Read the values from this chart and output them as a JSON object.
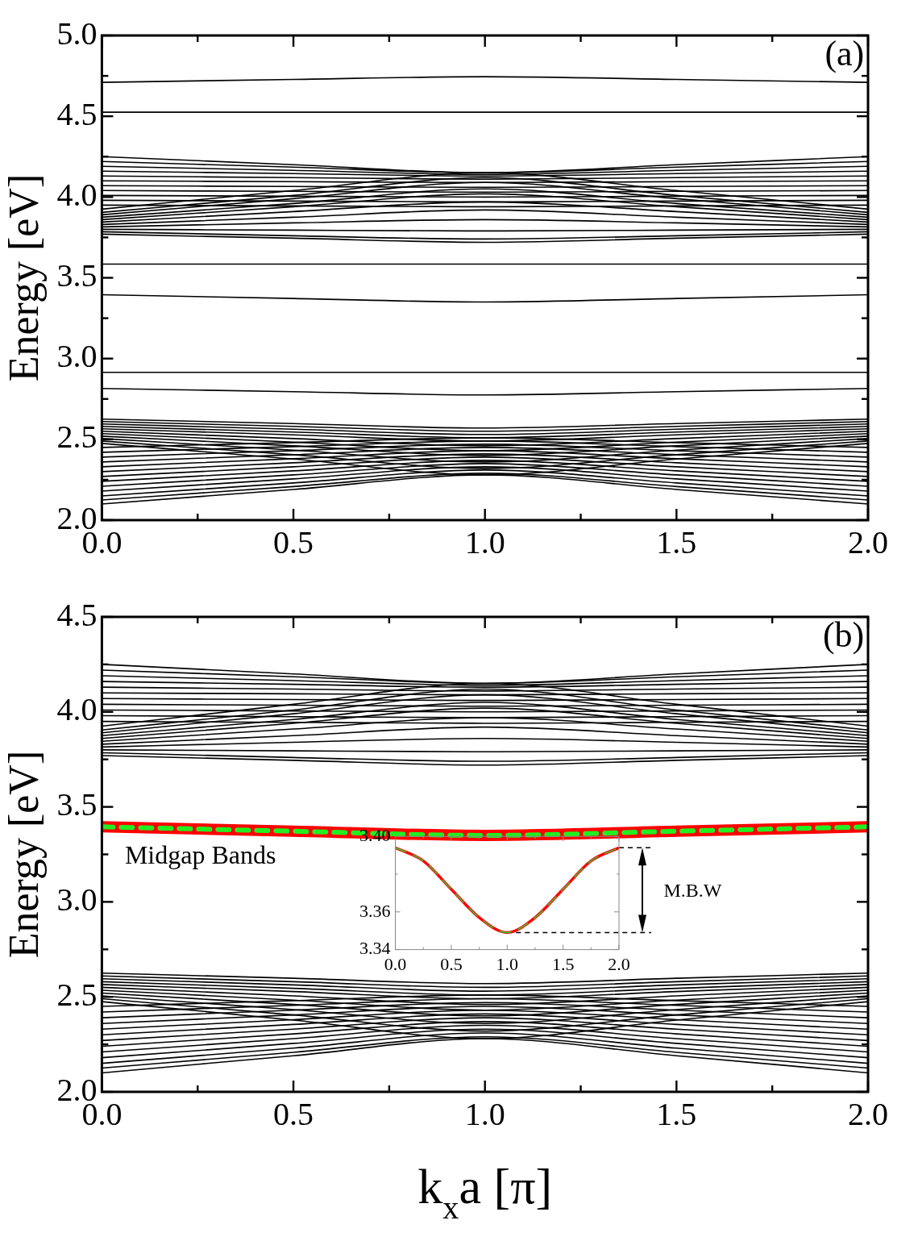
{
  "chart_data": [
    {
      "type": "line",
      "ylabel": "Energy [eV]",
      "annotations": [
        "(a)"
      ],
      "x": [
        0,
        0.5,
        1,
        1.5,
        2
      ],
      "xlim": [
        0,
        2
      ],
      "ylim": [
        2,
        5
      ],
      "xticks": [
        {
          "value": 0,
          "label": "0.0"
        },
        {
          "value": 0.25,
          "label": null
        },
        {
          "value": 0.5,
          "label": "0.5"
        },
        {
          "value": 0.75,
          "label": null
        },
        {
          "value": 1,
          "label": "1.0"
        },
        {
          "value": 1.25,
          "label": null
        },
        {
          "value": 1.5,
          "label": "1.5"
        },
        {
          "value": 1.75,
          "label": null
        },
        {
          "value": 2,
          "label": "2.0"
        }
      ],
      "yticks": [
        {
          "value": 2,
          "label": "2.0"
        },
        {
          "value": 2.25,
          "label": null
        },
        {
          "value": 2.5,
          "label": "2.5"
        },
        {
          "value": 2.75,
          "label": null
        },
        {
          "value": 3,
          "label": "3.0"
        },
        {
          "value": 3.25,
          "label": null
        },
        {
          "value": 3.5,
          "label": "3.5"
        },
        {
          "value": 3.75,
          "label": null
        },
        {
          "value": 4,
          "label": "4.0"
        },
        {
          "value": 4.25,
          "label": null
        },
        {
          "value": 4.5,
          "label": "4.5"
        },
        {
          "value": 4.75,
          "label": null
        },
        {
          "value": 5,
          "label": "5.0"
        }
      ],
      "grid": false,
      "legend": false,
      "marker": "none",
      "series": [
        {
          "color": "#000000",
          "values": [
            4.71,
            4.728,
            4.745,
            4.728,
            4.71
          ]
        },
        {
          "color": "#000000",
          "values": [
            4.525,
            4.525,
            4.525,
            4.525,
            4.525
          ]
        },
        {
          "color": "#000000",
          "values": [
            4.25,
            4.2,
            4.15,
            4.2,
            4.25
          ]
        },
        {
          "color": "#000000",
          "values": [
            4.22,
            4.185,
            4.15,
            4.185,
            4.22
          ]
        },
        {
          "color": "#000000",
          "values": [
            4.19,
            4.165,
            4.14,
            4.165,
            4.19
          ]
        },
        {
          "color": "#000000",
          "values": [
            4.16,
            4.145,
            4.13,
            4.145,
            4.16
          ]
        },
        {
          "color": "#000000",
          "values": [
            4.13,
            4.12,
            4.11,
            4.12,
            4.13
          ]
        },
        {
          "color": "#000000",
          "values": [
            4.1,
            4.095,
            4.09,
            4.095,
            4.1
          ]
        },
        {
          "color": "#000000",
          "values": [
            4.07,
            4.065,
            4.06,
            4.065,
            4.07
          ]
        },
        {
          "color": "#000000",
          "values": [
            4.04,
            4.035,
            4.03,
            4.035,
            4.04
          ]
        },
        {
          "color": "#000000",
          "values": [
            4.01,
            4.005,
            4.0,
            4.005,
            4.01
          ]
        },
        {
          "color": "#000000",
          "values": [
            3.98,
            3.975,
            3.97,
            3.975,
            3.98
          ]
        },
        {
          "color": "#000000",
          "values": [
            3.95,
            3.945,
            3.94,
            3.945,
            3.95
          ]
        },
        {
          "color": "#000000",
          "values": [
            3.925,
            4.04,
            4.15,
            4.04,
            3.925
          ]
        },
        {
          "color": "#000000",
          "values": [
            3.905,
            4.01,
            4.12,
            4.01,
            3.905
          ]
        },
        {
          "color": "#000000",
          "values": [
            3.89,
            3.99,
            4.09,
            3.99,
            3.89
          ]
        },
        {
          "color": "#000000",
          "values": [
            3.875,
            3.96,
            4.05,
            3.96,
            3.875
          ]
        },
        {
          "color": "#000000",
          "values": [
            3.86,
            3.94,
            4.02,
            3.94,
            3.86
          ]
        },
        {
          "color": "#000000",
          "values": [
            3.845,
            3.91,
            3.97,
            3.91,
            3.845
          ]
        },
        {
          "color": "#000000",
          "values": [
            3.83,
            3.875,
            3.92,
            3.875,
            3.83
          ]
        },
        {
          "color": "#000000",
          "values": [
            3.815,
            3.84,
            3.86,
            3.84,
            3.815
          ]
        },
        {
          "color": "#000000",
          "values": [
            3.8,
            3.795,
            3.79,
            3.795,
            3.8
          ]
        },
        {
          "color": "#000000",
          "values": [
            3.785,
            3.76,
            3.74,
            3.76,
            3.785
          ]
        },
        {
          "color": "#000000",
          "values": [
            3.77,
            3.745,
            3.72,
            3.745,
            3.77
          ]
        },
        {
          "color": "#000000",
          "values": [
            3.585,
            3.585,
            3.585,
            3.585,
            3.585
          ]
        },
        {
          "color": "#000000",
          "values": [
            3.395,
            3.372,
            3.35,
            3.372,
            3.395
          ]
        },
        {
          "color": "#000000",
          "values": [
            2.915,
            2.915,
            2.915,
            2.915,
            2.915
          ]
        },
        {
          "color": "#000000",
          "values": [
            2.815,
            2.795,
            2.775,
            2.795,
            2.815
          ]
        },
        {
          "color": "#000000",
          "values": [
            2.625,
            2.598,
            2.57,
            2.598,
            2.625
          ]
        },
        {
          "color": "#000000",
          "values": [
            2.61,
            2.58,
            2.55,
            2.58,
            2.61
          ]
        },
        {
          "color": "#000000",
          "values": [
            2.595,
            2.563,
            2.53,
            2.563,
            2.595
          ]
        },
        {
          "color": "#000000",
          "values": [
            2.58,
            2.545,
            2.51,
            2.545,
            2.58
          ]
        },
        {
          "color": "#000000",
          "values": [
            2.565,
            2.528,
            2.49,
            2.528,
            2.565
          ]
        },
        {
          "color": "#000000",
          "values": [
            2.55,
            2.505,
            2.46,
            2.505,
            2.55
          ]
        },
        {
          "color": "#000000",
          "values": [
            2.535,
            2.483,
            2.43,
            2.483,
            2.535
          ]
        },
        {
          "color": "#000000",
          "values": [
            2.52,
            2.46,
            2.4,
            2.46,
            2.52
          ]
        },
        {
          "color": "#000000",
          "values": [
            2.505,
            2.433,
            2.36,
            2.433,
            2.505
          ]
        },
        {
          "color": "#000000",
          "values": [
            2.49,
            2.405,
            2.32,
            2.405,
            2.49
          ]
        },
        {
          "color": "#000000",
          "values": [
            2.475,
            2.378,
            2.28,
            2.378,
            2.475
          ]
        },
        {
          "color": "#000000",
          "values": [
            2.1,
            2.19,
            2.28,
            2.19,
            2.1
          ]
        },
        {
          "color": "#000000",
          "values": [
            2.125,
            2.208,
            2.29,
            2.208,
            2.125
          ]
        },
        {
          "color": "#000000",
          "values": [
            2.15,
            2.23,
            2.31,
            2.23,
            2.15
          ]
        },
        {
          "color": "#000000",
          "values": [
            2.18,
            2.255,
            2.33,
            2.255,
            2.18
          ]
        },
        {
          "color": "#000000",
          "values": [
            2.21,
            2.28,
            2.35,
            2.28,
            2.21
          ]
        },
        {
          "color": "#000000",
          "values": [
            2.24,
            2.305,
            2.37,
            2.305,
            2.24
          ]
        },
        {
          "color": "#000000",
          "values": [
            2.27,
            2.33,
            2.39,
            2.33,
            2.27
          ]
        },
        {
          "color": "#000000",
          "values": [
            2.3,
            2.355,
            2.41,
            2.355,
            2.3
          ]
        },
        {
          "color": "#000000",
          "values": [
            2.33,
            2.38,
            2.43,
            2.38,
            2.33
          ]
        },
        {
          "color": "#000000",
          "values": [
            2.36,
            2.405,
            2.45,
            2.405,
            2.36
          ]
        },
        {
          "color": "#000000",
          "values": [
            2.39,
            2.43,
            2.47,
            2.43,
            2.39
          ]
        },
        {
          "color": "#000000",
          "values": [
            2.42,
            2.455,
            2.49,
            2.455,
            2.42
          ]
        },
        {
          "color": "#000000",
          "values": [
            2.45,
            2.48,
            2.51,
            2.48,
            2.45
          ]
        }
      ]
    },
    {
      "type": "line",
      "xlabel": "k$_{x}$a [π]",
      "ylabel": "Energy [eV]",
      "annotations": [
        "(b)",
        "Midgap Bands"
      ],
      "x": [
        0,
        0.5,
        1,
        1.5,
        2
      ],
      "xlim": [
        0,
        2
      ],
      "ylim": [
        2,
        4.5
      ],
      "xticks": [
        {
          "value": 0,
          "label": "0.0"
        },
        {
          "value": 0.25,
          "label": null
        },
        {
          "value": 0.5,
          "label": "0.5"
        },
        {
          "value": 0.75,
          "label": null
        },
        {
          "value": 1,
          "label": "1.0"
        },
        {
          "value": 1.25,
          "label": null
        },
        {
          "value": 1.5,
          "label": "1.5"
        },
        {
          "value": 1.75,
          "label": null
        },
        {
          "value": 2,
          "label": "2.0"
        }
      ],
      "yticks": [
        {
          "value": 2,
          "label": "2.0"
        },
        {
          "value": 2.25,
          "label": null
        },
        {
          "value": 2.5,
          "label": "2.5"
        },
        {
          "value": 2.75,
          "label": null
        },
        {
          "value": 3,
          "label": "3.0"
        },
        {
          "value": 3.25,
          "label": null
        },
        {
          "value": 3.5,
          "label": "3.5"
        },
        {
          "value": 3.75,
          "label": null
        },
        {
          "value": 4,
          "label": "4.0"
        },
        {
          "value": 4.25,
          "label": null
        },
        {
          "value": 4.5,
          "label": "4.5"
        }
      ],
      "grid": false,
      "legend": false,
      "marker": "none",
      "series": [
        {
          "color": "#22ee22",
          "line_style": "dashed",
          "values": [
            3.395,
            3.372,
            3.35,
            3.372,
            3.395
          ]
        },
        {
          "color": "#ff0000",
          "values": [
            3.395,
            3.372,
            3.35,
            3.372,
            3.395
          ]
        },
        {
          "color": "#000000",
          "values": [
            4.25,
            4.2,
            4.15,
            4.2,
            4.25
          ]
        },
        {
          "color": "#000000",
          "values": [
            4.22,
            4.185,
            4.15,
            4.185,
            4.22
          ]
        },
        {
          "color": "#000000",
          "values": [
            4.19,
            4.165,
            4.14,
            4.165,
            4.19
          ]
        },
        {
          "color": "#000000",
          "values": [
            4.16,
            4.145,
            4.13,
            4.145,
            4.16
          ]
        },
        {
          "color": "#000000",
          "values": [
            4.13,
            4.12,
            4.11,
            4.12,
            4.13
          ]
        },
        {
          "color": "#000000",
          "values": [
            4.1,
            4.095,
            4.09,
            4.095,
            4.1
          ]
        },
        {
          "color": "#000000",
          "values": [
            4.07,
            4.065,
            4.06,
            4.065,
            4.07
          ]
        },
        {
          "color": "#000000",
          "values": [
            4.04,
            4.035,
            4.03,
            4.035,
            4.04
          ]
        },
        {
          "color": "#000000",
          "values": [
            4.01,
            4.005,
            4.0,
            4.005,
            4.01
          ]
        },
        {
          "color": "#000000",
          "values": [
            3.98,
            3.975,
            3.97,
            3.975,
            3.98
          ]
        },
        {
          "color": "#000000",
          "values": [
            3.95,
            3.945,
            3.94,
            3.945,
            3.95
          ]
        },
        {
          "color": "#000000",
          "values": [
            3.925,
            4.04,
            4.15,
            4.04,
            3.925
          ]
        },
        {
          "color": "#000000",
          "values": [
            3.905,
            4.01,
            4.12,
            4.01,
            3.905
          ]
        },
        {
          "color": "#000000",
          "values": [
            3.89,
            3.99,
            4.09,
            3.99,
            3.89
          ]
        },
        {
          "color": "#000000",
          "values": [
            3.875,
            3.96,
            4.05,
            3.96,
            3.875
          ]
        },
        {
          "color": "#000000",
          "values": [
            3.86,
            3.94,
            4.02,
            3.94,
            3.86
          ]
        },
        {
          "color": "#000000",
          "values": [
            3.845,
            3.91,
            3.97,
            3.91,
            3.845
          ]
        },
        {
          "color": "#000000",
          "values": [
            3.83,
            3.875,
            3.92,
            3.875,
            3.83
          ]
        },
        {
          "color": "#000000",
          "values": [
            3.815,
            3.84,
            3.86,
            3.84,
            3.815
          ]
        },
        {
          "color": "#000000",
          "values": [
            3.8,
            3.795,
            3.79,
            3.795,
            3.8
          ]
        },
        {
          "color": "#000000",
          "values": [
            3.785,
            3.76,
            3.74,
            3.76,
            3.785
          ]
        },
        {
          "color": "#000000",
          "values": [
            3.77,
            3.745,
            3.72,
            3.745,
            3.77
          ]
        },
        {
          "color": "#000000",
          "values": [
            2.625,
            2.598,
            2.57,
            2.598,
            2.625
          ]
        },
        {
          "color": "#000000",
          "values": [
            2.61,
            2.58,
            2.55,
            2.58,
            2.61
          ]
        },
        {
          "color": "#000000",
          "values": [
            2.595,
            2.563,
            2.53,
            2.563,
            2.595
          ]
        },
        {
          "color": "#000000",
          "values": [
            2.58,
            2.545,
            2.51,
            2.545,
            2.58
          ]
        },
        {
          "color": "#000000",
          "values": [
            2.565,
            2.528,
            2.49,
            2.528,
            2.565
          ]
        },
        {
          "color": "#000000",
          "values": [
            2.55,
            2.505,
            2.46,
            2.505,
            2.55
          ]
        },
        {
          "color": "#000000",
          "values": [
            2.535,
            2.483,
            2.43,
            2.483,
            2.535
          ]
        },
        {
          "color": "#000000",
          "values": [
            2.52,
            2.46,
            2.4,
            2.46,
            2.52
          ]
        },
        {
          "color": "#000000",
          "values": [
            2.505,
            2.433,
            2.36,
            2.433,
            2.505
          ]
        },
        {
          "color": "#000000",
          "values": [
            2.49,
            2.405,
            2.32,
            2.405,
            2.49
          ]
        },
        {
          "color": "#000000",
          "values": [
            2.475,
            2.378,
            2.28,
            2.378,
            2.475
          ]
        },
        {
          "color": "#000000",
          "values": [
            2.1,
            2.19,
            2.28,
            2.19,
            2.1
          ]
        },
        {
          "color": "#000000",
          "values": [
            2.125,
            2.208,
            2.29,
            2.208,
            2.125
          ]
        },
        {
          "color": "#000000",
          "values": [
            2.15,
            2.23,
            2.31,
            2.23,
            2.15
          ]
        },
        {
          "color": "#000000",
          "values": [
            2.18,
            2.255,
            2.33,
            2.255,
            2.18
          ]
        },
        {
          "color": "#000000",
          "values": [
            2.21,
            2.28,
            2.35,
            2.28,
            2.21
          ]
        },
        {
          "color": "#000000",
          "values": [
            2.24,
            2.305,
            2.37,
            2.305,
            2.24
          ]
        },
        {
          "color": "#000000",
          "values": [
            2.27,
            2.33,
            2.39,
            2.33,
            2.27
          ]
        },
        {
          "color": "#000000",
          "values": [
            2.3,
            2.355,
            2.41,
            2.355,
            2.3
          ]
        },
        {
          "color": "#000000",
          "values": [
            2.33,
            2.38,
            2.43,
            2.38,
            2.33
          ]
        },
        {
          "color": "#000000",
          "values": [
            2.36,
            2.405,
            2.45,
            2.405,
            2.36
          ]
        },
        {
          "color": "#000000",
          "values": [
            2.39,
            2.43,
            2.47,
            2.43,
            2.39
          ]
        },
        {
          "color": "#000000",
          "values": [
            2.42,
            2.455,
            2.49,
            2.455,
            2.42
          ]
        },
        {
          "color": "#000000",
          "values": [
            2.45,
            2.48,
            2.51,
            2.48,
            2.45
          ]
        }
      ]
    },
    {
      "type": "line",
      "annotations": [
        "M.B.W"
      ],
      "x": [
        0,
        0.25,
        0.5,
        0.75,
        1,
        1.25,
        1.5,
        1.75,
        2
      ],
      "xlim": [
        0,
        2
      ],
      "ylim": [
        3.34,
        3.4
      ],
      "xticks": [
        {
          "value": 0,
          "label": "0.0"
        },
        {
          "value": 0.25,
          "label": null
        },
        {
          "value": 0.5,
          "label": "0.5"
        },
        {
          "value": 0.75,
          "label": null
        },
        {
          "value": 1,
          "label": "1.0"
        },
        {
          "value": 1.25,
          "label": null
        },
        {
          "value": 1.5,
          "label": "1.5"
        },
        {
          "value": 1.75,
          "label": null
        },
        {
          "value": 2,
          "label": "2.0"
        }
      ],
      "yticks": [
        3.34,
        3.36,
        {
          "value": 3.38,
          "label": null
        },
        {
          "value": 3.4,
          "label": "3.40"
        }
      ],
      "grid": false,
      "legend": false,
      "marker": "none",
      "series": [
        {
          "color": "#33cc33",
          "line_style": "dashed",
          "values": [
            3.394,
            3.387,
            3.372,
            3.357,
            3.349,
            3.357,
            3.372,
            3.387,
            3.394
          ]
        },
        {
          "color": "#ff0000",
          "values": [
            3.394,
            3.387,
            3.372,
            3.357,
            3.349,
            3.357,
            3.372,
            3.387,
            3.394
          ]
        }
      ]
    }
  ]
}
